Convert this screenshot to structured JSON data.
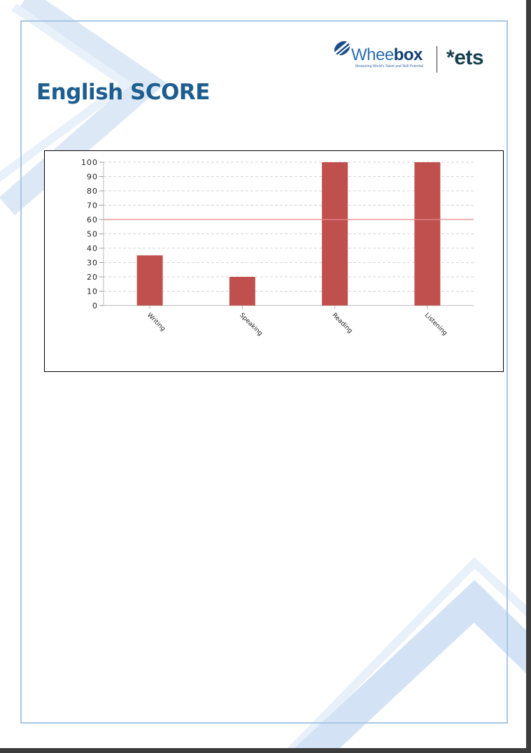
{
  "page": {
    "title": "English SCORE"
  },
  "logos": {
    "wheebox_prefix": "Whee",
    "wheebox_suffix": "box",
    "wheebox_tagline": "Measuring World's Talent and Skill Potential",
    "ets": "ets"
  },
  "colors": {
    "bar": "#c0504d",
    "threshold": "#e8878a",
    "title": "#1e5e8e",
    "frame": "#a9c6e4"
  },
  "chart_data": {
    "type": "bar",
    "categories": [
      "Writing",
      "Speaking",
      "Reading",
      "Listening"
    ],
    "values": [
      35,
      20,
      100,
      100
    ],
    "ylim": [
      0,
      100
    ],
    "yticks": [
      0,
      10,
      20,
      30,
      40,
      50,
      60,
      70,
      80,
      90,
      100
    ],
    "threshold": 60,
    "grid": true,
    "title": "",
    "xlabel": "",
    "ylabel": ""
  }
}
